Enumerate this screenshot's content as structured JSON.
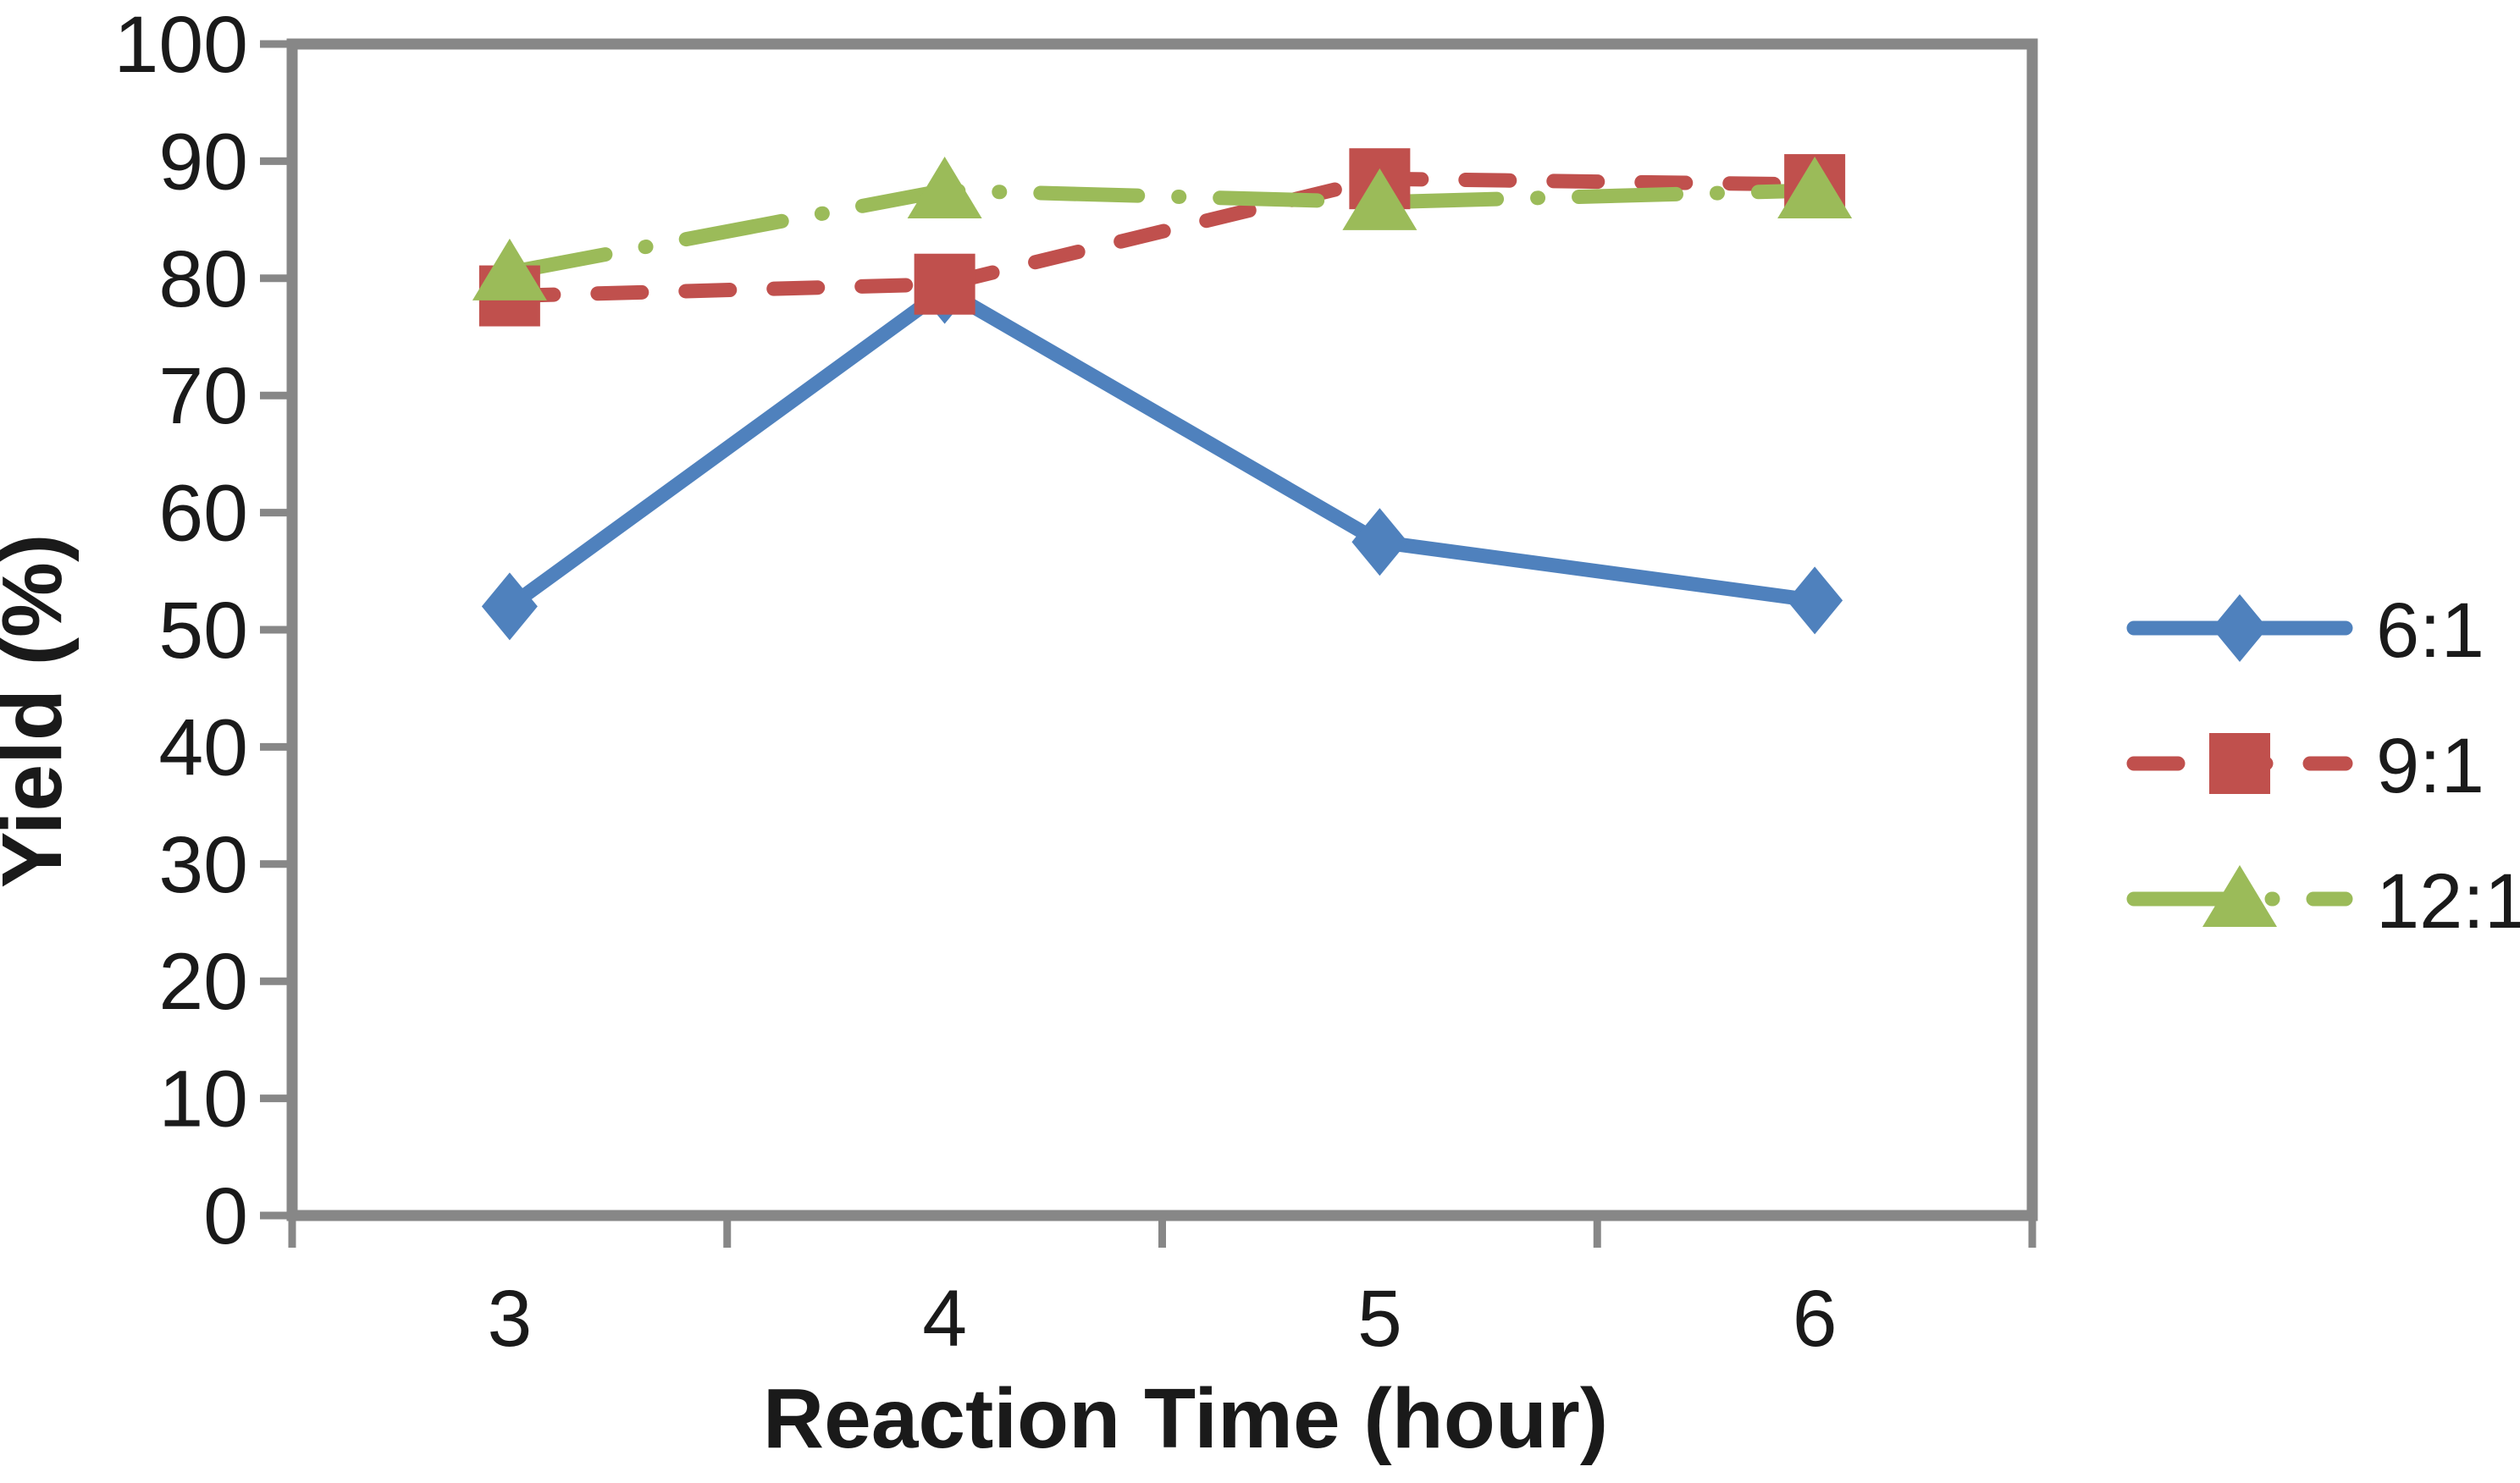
{
  "figure": {
    "background_color": "#ffffff",
    "axis_color": "#878787",
    "text_color": "#1a1a1a"
  },
  "chart_data": {
    "type": "line",
    "title": "",
    "xlabel": "Reaction Time (hour)",
    "ylabel": "Yield (%)",
    "x": [
      3,
      4,
      5,
      6
    ],
    "xtick_labels": [
      "3",
      "4",
      "5",
      "6"
    ],
    "ylim": [
      0,
      100
    ],
    "yticks": [
      0,
      10,
      20,
      30,
      40,
      50,
      60,
      70,
      80,
      90,
      100
    ],
    "grid": "off",
    "legend_position": "right",
    "series": [
      {
        "name": "6:1",
        "color": "#4F81BD",
        "marker": "diamond",
        "line_style": "solid",
        "values": [
          52,
          79,
          57.5,
          52.5
        ]
      },
      {
        "name": "9:1",
        "color": "#C0504D",
        "marker": "square",
        "line_style": "dashed",
        "values": [
          78.5,
          79.5,
          88.5,
          88
        ]
      },
      {
        "name": "12:1",
        "color": "#9BBB59",
        "marker": "triangle",
        "line_style": "dashdot",
        "values": [
          80.5,
          87.5,
          86.5,
          87.5
        ]
      }
    ]
  }
}
